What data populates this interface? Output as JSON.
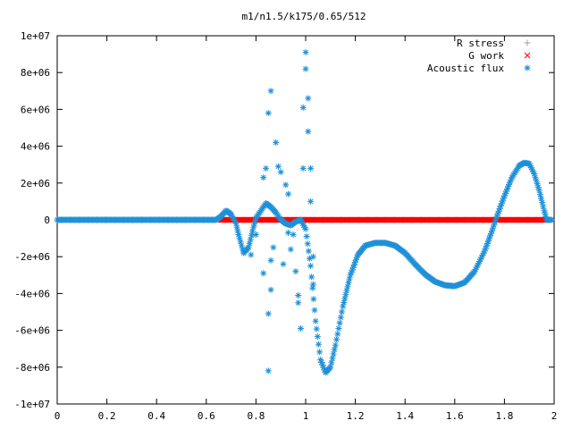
{
  "chart_data": {
    "type": "scatter",
    "title": "m1/n1.5/k175/0.65/512",
    "xlabel": "",
    "ylabel": "",
    "xlim": [
      0,
      2
    ],
    "ylim": [
      -10000000,
      10000000
    ],
    "x_ticks": [
      "0",
      "0.2",
      "0.4",
      "0.6",
      "0.8",
      "1",
      "1.2",
      "1.4",
      "1.6",
      "1.8",
      "2"
    ],
    "y_ticks": [
      "-1e+07",
      "-8e+06",
      "-6e+06",
      "-4e+06",
      "-2e+06",
      "0",
      "2e+06",
      "4e+06",
      "6e+06",
      "8e+06",
      "1e+07"
    ],
    "grid": false,
    "legend_position": "top-right",
    "series": [
      {
        "name": "R stress",
        "marker": "+",
        "color": "#a0a0a0",
        "points": []
      },
      {
        "name": "G work",
        "marker": "x",
        "color": "#ff0000",
        "points": [
          [
            0.66,
            0
          ],
          [
            0.7,
            0
          ],
          [
            0.75,
            0
          ],
          [
            0.8,
            0
          ],
          [
            0.85,
            0
          ],
          [
            0.9,
            0
          ],
          [
            0.95,
            0
          ],
          [
            1.0,
            0
          ],
          [
            1.05,
            0
          ],
          [
            1.1,
            0
          ],
          [
            1.15,
            0
          ],
          [
            1.2,
            0
          ],
          [
            1.25,
            0
          ],
          [
            1.3,
            0
          ],
          [
            1.35,
            0
          ],
          [
            1.4,
            0
          ],
          [
            1.45,
            0
          ],
          [
            1.5,
            0
          ],
          [
            1.55,
            0
          ],
          [
            1.6,
            0
          ],
          [
            1.65,
            0
          ],
          [
            1.7,
            0
          ],
          [
            1.75,
            0
          ],
          [
            1.8,
            0
          ],
          [
            1.85,
            0
          ],
          [
            1.9,
            0
          ],
          [
            1.95,
            0
          ],
          [
            1.97,
            0
          ]
        ]
      },
      {
        "name": "Acoustic flux",
        "marker": "*",
        "color": "#1e90d8",
        "curve": [
          [
            0.0,
            0
          ],
          [
            0.1,
            0
          ],
          [
            0.2,
            0
          ],
          [
            0.3,
            0
          ],
          [
            0.4,
            0
          ],
          [
            0.5,
            0
          ],
          [
            0.6,
            0
          ],
          [
            0.64,
            0
          ],
          [
            0.66,
            200000
          ],
          [
            0.68,
            500000
          ],
          [
            0.7,
            300000
          ],
          [
            0.72,
            -200000
          ],
          [
            0.73,
            -800000
          ],
          [
            0.75,
            -1800000
          ],
          [
            0.77,
            -1500000
          ],
          [
            0.79,
            -400000
          ],
          [
            0.8,
            100000
          ],
          [
            0.82,
            500000
          ],
          [
            0.84,
            900000
          ],
          [
            0.86,
            700000
          ],
          [
            0.88,
            400000
          ],
          [
            0.9,
            0
          ],
          [
            0.92,
            -200000
          ],
          [
            0.94,
            -300000
          ],
          [
            0.96,
            -100000
          ],
          [
            0.98,
            0
          ],
          [
            1.0,
            -500000
          ],
          [
            1.02,
            -2500000
          ],
          [
            1.04,
            -5500000
          ],
          [
            1.06,
            -7600000
          ],
          [
            1.08,
            -8300000
          ],
          [
            1.1,
            -8000000
          ],
          [
            1.12,
            -6800000
          ],
          [
            1.15,
            -4700000
          ],
          [
            1.18,
            -3000000
          ],
          [
            1.21,
            -1900000
          ],
          [
            1.24,
            -1400000
          ],
          [
            1.28,
            -1250000
          ],
          [
            1.32,
            -1250000
          ],
          [
            1.36,
            -1400000
          ],
          [
            1.4,
            -1800000
          ],
          [
            1.44,
            -2400000
          ],
          [
            1.48,
            -2950000
          ],
          [
            1.52,
            -3350000
          ],
          [
            1.56,
            -3550000
          ],
          [
            1.6,
            -3600000
          ],
          [
            1.64,
            -3400000
          ],
          [
            1.68,
            -2800000
          ],
          [
            1.72,
            -1700000
          ],
          [
            1.75,
            -600000
          ],
          [
            1.77,
            200000
          ],
          [
            1.8,
            1300000
          ],
          [
            1.83,
            2300000
          ],
          [
            1.86,
            2950000
          ],
          [
            1.88,
            3100000
          ],
          [
            1.9,
            3050000
          ],
          [
            1.92,
            2500000
          ],
          [
            1.94,
            1600000
          ],
          [
            1.96,
            500000
          ],
          [
            1.97,
            0
          ],
          [
            1.99,
            0
          ]
        ],
        "scatter": [
          [
            0.84,
            2800000
          ],
          [
            0.83,
            2300000
          ],
          [
            0.86,
            -2200000
          ],
          [
            0.85,
            -5100000
          ],
          [
            0.86,
            -3800000
          ],
          [
            0.87,
            -1500000
          ],
          [
            0.88,
            4200000
          ],
          [
            0.89,
            2900000
          ],
          [
            0.9,
            2600000
          ],
          [
            0.91,
            -2400000
          ],
          [
            0.92,
            1900000
          ],
          [
            0.93,
            1400000
          ],
          [
            0.94,
            -1600000
          ],
          [
            0.95,
            -800000
          ],
          [
            0.96,
            -2800000
          ],
          [
            0.97,
            -4500000
          ],
          [
            0.98,
            -5900000
          ],
          [
            0.99,
            6100000
          ],
          [
            1.0,
            8200000
          ],
          [
            1.0,
            9100000
          ],
          [
            1.01,
            6600000
          ],
          [
            1.01,
            4800000
          ],
          [
            1.02,
            2800000
          ],
          [
            1.02,
            1000000
          ],
          [
            0.99,
            2800000
          ],
          [
            0.85,
            -8200000
          ],
          [
            0.85,
            5800000
          ],
          [
            0.86,
            7000000
          ],
          [
            0.8,
            -800000
          ],
          [
            0.78,
            -1900000
          ],
          [
            0.83,
            -2900000
          ],
          [
            0.93,
            -700000
          ],
          [
            0.97,
            -4100000
          ],
          [
            1.03,
            -3500000
          ],
          [
            1.03,
            -2000000
          ]
        ]
      }
    ]
  }
}
